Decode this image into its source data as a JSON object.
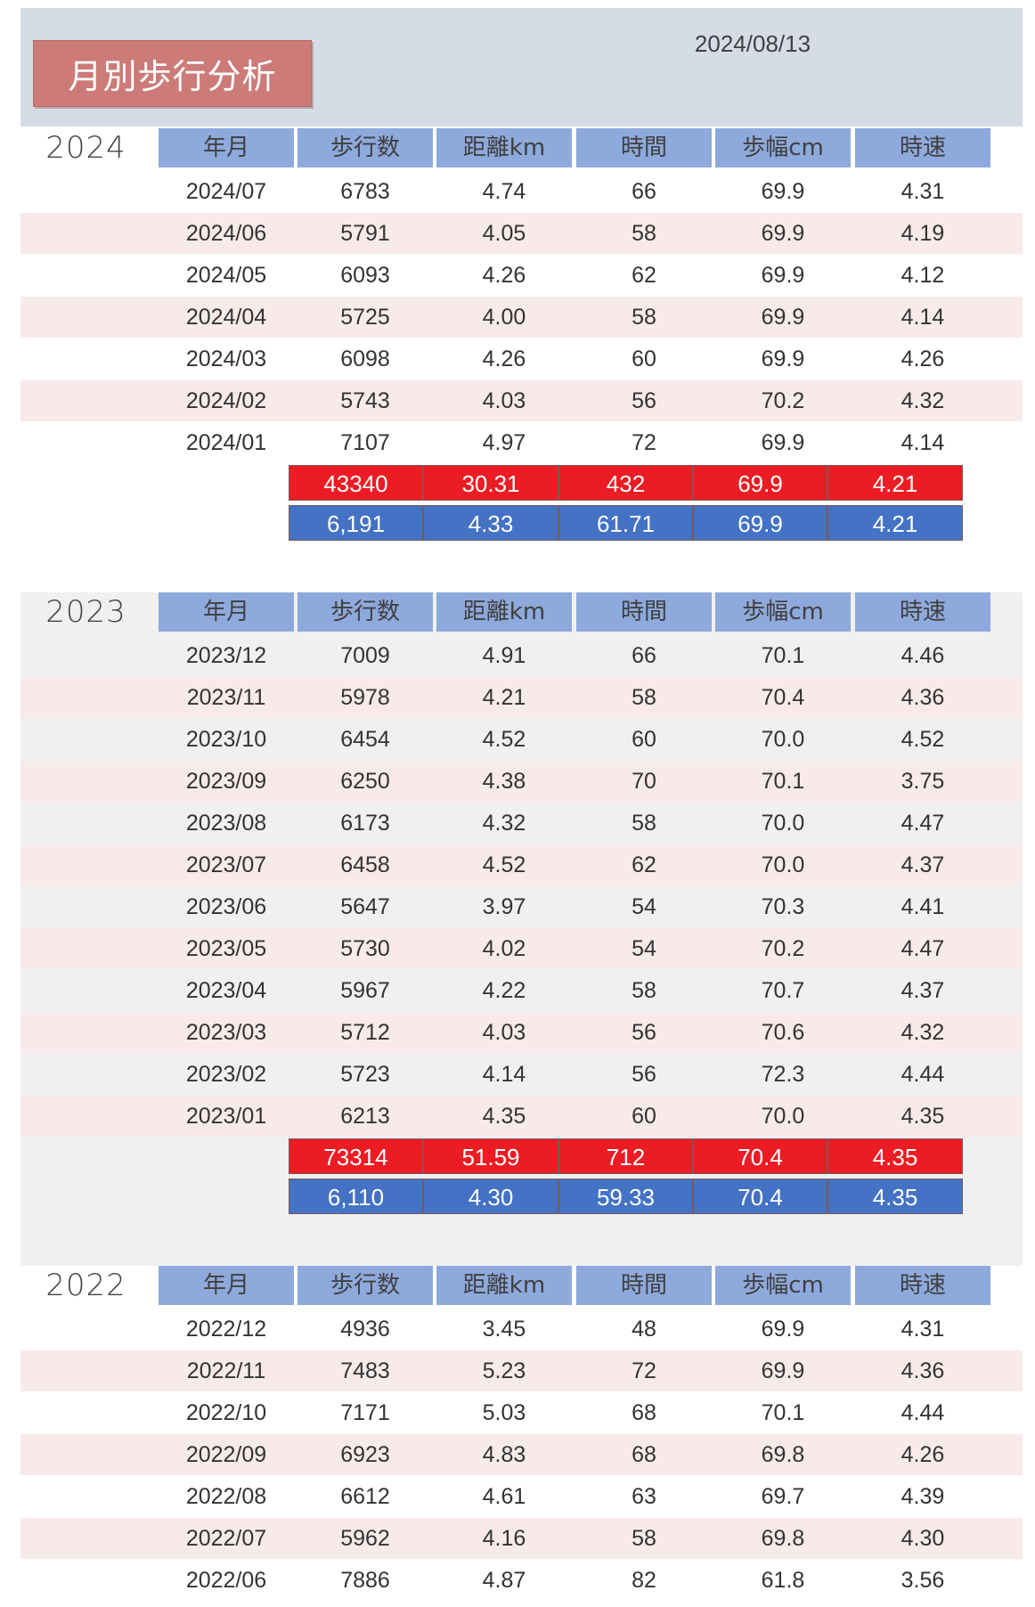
{
  "title": "月別歩行分析",
  "report_date": "2024/08/13",
  "columns": [
    "年月",
    "歩行数",
    "距離km",
    "時間",
    "歩幅cm",
    "時速"
  ],
  "years": [
    {
      "year": "2024",
      "rows": [
        [
          "2024/07",
          "6783",
          "4.74",
          "66",
          "69.9",
          "4.31"
        ],
        [
          "2024/06",
          "5791",
          "4.05",
          "58",
          "69.9",
          "4.19"
        ],
        [
          "2024/05",
          "6093",
          "4.26",
          "62",
          "69.9",
          "4.12"
        ],
        [
          "2024/04",
          "5725",
          "4.00",
          "58",
          "69.9",
          "4.14"
        ],
        [
          "2024/03",
          "6098",
          "4.26",
          "60",
          "69.9",
          "4.26"
        ],
        [
          "2024/02",
          "5743",
          "4.03",
          "56",
          "70.2",
          "4.32"
        ],
        [
          "2024/01",
          "7107",
          "4.97",
          "72",
          "69.9",
          "4.14"
        ]
      ],
      "total": [
        "43340",
        "30.31",
        "432",
        "69.9",
        "4.21"
      ],
      "average": [
        "6,191",
        "4.33",
        "61.71",
        "69.9",
        "4.21"
      ]
    },
    {
      "year": "2023",
      "rows": [
        [
          "2023/12",
          "7009",
          "4.91",
          "66",
          "70.1",
          "4.46"
        ],
        [
          "2023/11",
          "5978",
          "4.21",
          "58",
          "70.4",
          "4.36"
        ],
        [
          "2023/10",
          "6454",
          "4.52",
          "60",
          "70.0",
          "4.52"
        ],
        [
          "2023/09",
          "6250",
          "4.38",
          "70",
          "70.1",
          "3.75"
        ],
        [
          "2023/08",
          "6173",
          "4.32",
          "58",
          "70.0",
          "4.47"
        ],
        [
          "2023/07",
          "6458",
          "4.52",
          "62",
          "70.0",
          "4.37"
        ],
        [
          "2023/06",
          "5647",
          "3.97",
          "54",
          "70.3",
          "4.41"
        ],
        [
          "2023/05",
          "5730",
          "4.02",
          "54",
          "70.2",
          "4.47"
        ],
        [
          "2023/04",
          "5967",
          "4.22",
          "58",
          "70.7",
          "4.37"
        ],
        [
          "2023/03",
          "5712",
          "4.03",
          "56",
          "70.6",
          "4.32"
        ],
        [
          "2023/02",
          "5723",
          "4.14",
          "56",
          "72.3",
          "4.44"
        ],
        [
          "2023/01",
          "6213",
          "4.35",
          "60",
          "70.0",
          "4.35"
        ]
      ],
      "total": [
        "73314",
        "51.59",
        "712",
        "70.4",
        "4.35"
      ],
      "average": [
        "6,110",
        "4.30",
        "59.33",
        "70.4",
        "4.35"
      ]
    },
    {
      "year": "2022",
      "rows": [
        [
          "2022/12",
          "4936",
          "3.45",
          "48",
          "69.9",
          "4.31"
        ],
        [
          "2022/11",
          "7483",
          "5.23",
          "72",
          "69.9",
          "4.36"
        ],
        [
          "2022/10",
          "7171",
          "5.03",
          "68",
          "70.1",
          "4.44"
        ],
        [
          "2022/09",
          "6923",
          "4.83",
          "68",
          "69.8",
          "4.26"
        ],
        [
          "2022/08",
          "6612",
          "4.61",
          "63",
          "69.7",
          "4.39"
        ],
        [
          "2022/07",
          "5962",
          "4.16",
          "58",
          "69.8",
          "4.30"
        ],
        [
          "2022/06",
          "7886",
          "4.87",
          "82",
          "61.8",
          "3.56"
        ]
      ]
    }
  ],
  "colors": {
    "header_band": "#d6dce6",
    "title_box": "#cc7b78",
    "column_header": "#8ea9db",
    "stripe": "#f8eaea",
    "total_row": "#ec1c24",
    "average_row": "#4472c4"
  }
}
